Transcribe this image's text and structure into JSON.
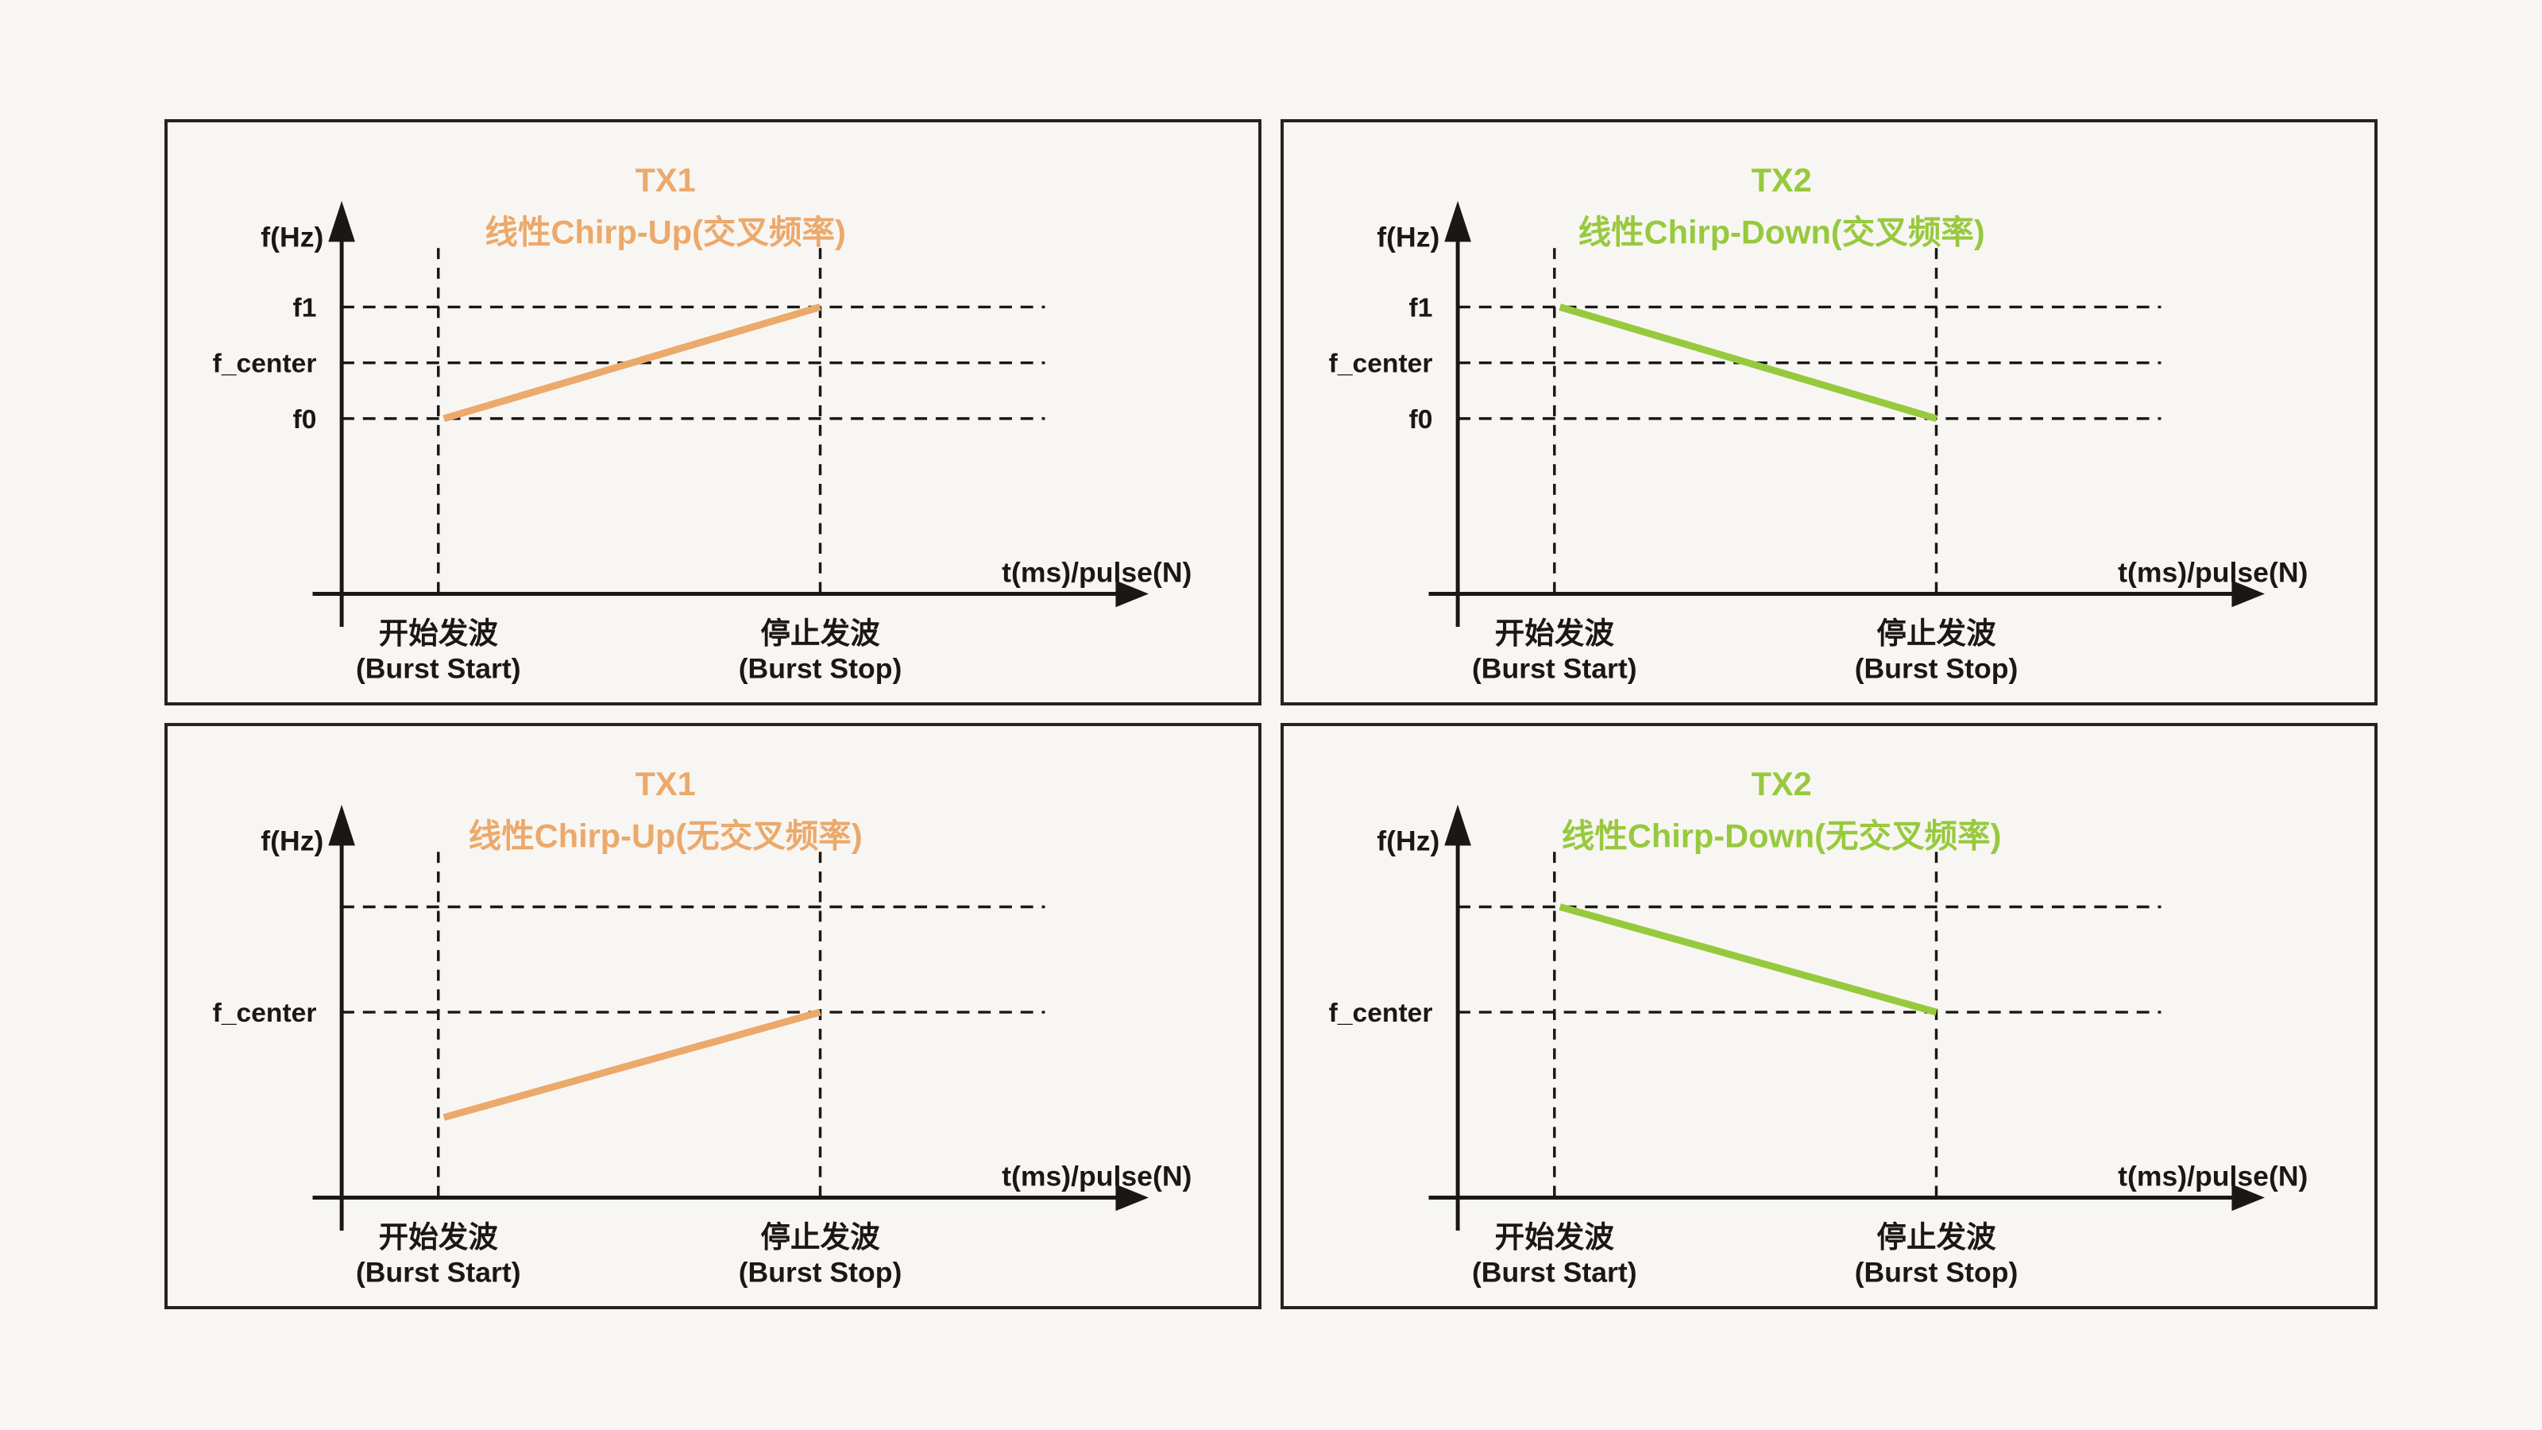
{
  "page": {
    "background_color": "#F8F6F2",
    "axis_color": "#1A1714",
    "border_color": "#262220",
    "tx1_color": "#EBA96B",
    "tx2_color": "#97C93E"
  },
  "shared": {
    "y_axis_label": "f(Hz)",
    "x_axis_label": "t(ms)/pulse(N)",
    "burst_start_line1": "开始发波",
    "burst_start_line2": "(Burst Start)",
    "burst_stop_line1": "停止发波",
    "burst_stop_line2": "(Burst Stop)"
  },
  "panels": [
    {
      "id": "tx1-crossed",
      "title_line1": "TX1",
      "title_line2": "线性Chirp-Up(交叉频率)",
      "accent": "#EBA96B",
      "h_levels": [
        {
          "label": "f1",
          "level": "f1"
        },
        {
          "label": "f_center",
          "level": "f_center"
        },
        {
          "label": "f0",
          "level": "f0"
        }
      ],
      "chirp": {
        "direction": "up",
        "from_level": "f0",
        "to_level": "f1"
      }
    },
    {
      "id": "tx2-crossed",
      "title_line1": "TX2",
      "title_line2": "线性Chirp-Down(交叉频率)",
      "accent": "#97C93E",
      "h_levels": [
        {
          "label": "f1",
          "level": "f1"
        },
        {
          "label": "f_center",
          "level": "f_center"
        },
        {
          "label": "f0",
          "level": "f0"
        }
      ],
      "chirp": {
        "direction": "down",
        "from_level": "f1",
        "to_level": "f0"
      }
    },
    {
      "id": "tx1-noncrossed",
      "title_line1": "TX1",
      "title_line2": "线性Chirp-Up(无交叉频率)",
      "accent": "#EBA96B",
      "h_levels": [
        {
          "label": "",
          "level": "upper_b"
        },
        {
          "label": "f_center",
          "level": "center_b"
        }
      ],
      "chirp": {
        "direction": "up",
        "from_level": "lower_b",
        "to_level": "center_b"
      }
    },
    {
      "id": "tx2-noncrossed",
      "title_line1": "TX2",
      "title_line2": "线性Chirp-Down(无交叉频率)",
      "accent": "#97C93E",
      "h_levels": [
        {
          "label": "",
          "level": "upper_b"
        },
        {
          "label": "f_center",
          "level": "center_b"
        }
      ],
      "chirp": {
        "direction": "down",
        "from_level": "upper_b",
        "to_level": "center_b"
      }
    }
  ]
}
